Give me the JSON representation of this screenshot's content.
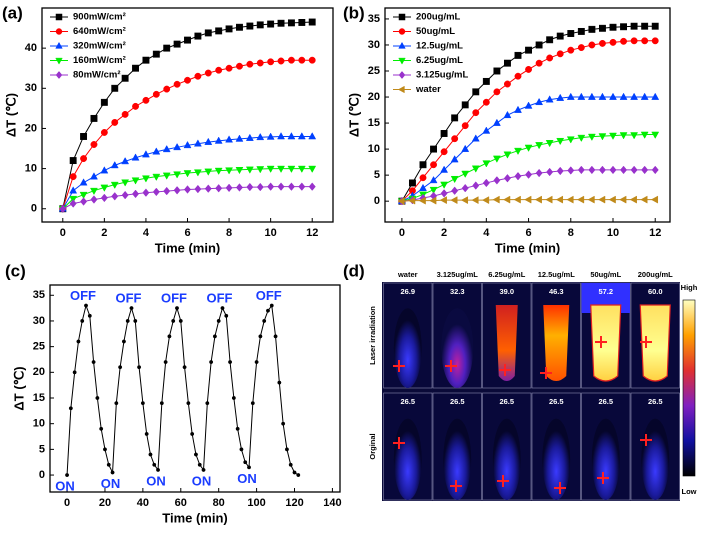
{
  "chart_data": [
    {
      "type": "line",
      "panel_label": "(a)",
      "x_label": "Time (min)",
      "y_label": "ΔT (℃)",
      "x": [
        0,
        0.5,
        1,
        1.5,
        2,
        2.5,
        3,
        3.5,
        4,
        4.5,
        5,
        5.5,
        6,
        6.5,
        7,
        7.5,
        8,
        8.5,
        9,
        9.5,
        10,
        10.5,
        11,
        11.5,
        12
      ],
      "series": [
        {
          "name": "900mW/cm²",
          "color": "#000000",
          "marker": "square",
          "values": [
            0,
            12,
            18,
            22.5,
            26.5,
            30,
            32.5,
            35,
            37,
            38.5,
            40,
            41,
            42,
            43,
            43.8,
            44.3,
            44.8,
            45.2,
            45.5,
            45.8,
            46,
            46.2,
            46.3,
            46.4,
            46.5
          ]
        },
        {
          "name": "640mW/cm²",
          "color": "#ff0000",
          "marker": "circle",
          "values": [
            0,
            8,
            12.5,
            16,
            19,
            21.5,
            23.5,
            25.5,
            27,
            28.5,
            29.8,
            31,
            32,
            33,
            33.8,
            34.5,
            35,
            35.5,
            36,
            36.3,
            36.6,
            36.8,
            37,
            37,
            37
          ]
        },
        {
          "name": "320mW/cm²",
          "color": "#0040ff",
          "marker": "triangle-up",
          "values": [
            0,
            4.5,
            6.5,
            8,
            9.5,
            10.8,
            11.8,
            12.7,
            13.5,
            14.2,
            14.8,
            15.3,
            15.8,
            16.2,
            16.6,
            16.9,
            17.2,
            17.4,
            17.6,
            17.8,
            17.9,
            18,
            18,
            18,
            18
          ]
        },
        {
          "name": "160mW/cm²",
          "color": "#00ee00",
          "marker": "triangle-down",
          "values": [
            0,
            2.5,
            3.5,
            4.5,
            5.3,
            6,
            6.6,
            7.1,
            7.6,
            8,
            8.3,
            8.6,
            8.9,
            9.1,
            9.3,
            9.5,
            9.6,
            9.7,
            9.8,
            9.9,
            10,
            10,
            10,
            10,
            10
          ]
        },
        {
          "name": "80mW/cm²",
          "color": "#9932cc",
          "marker": "diamond",
          "values": [
            0,
            1.3,
            1.8,
            2.3,
            2.7,
            3.1,
            3.4,
            3.7,
            4,
            4.2,
            4.4,
            4.6,
            4.8,
            4.9,
            5,
            5.1,
            5.2,
            5.3,
            5.4,
            5.4,
            5.5,
            5.5,
            5.5,
            5.5,
            5.5
          ]
        }
      ],
      "xlim": [
        -1,
        13
      ],
      "xticks": [
        0,
        2,
        4,
        6,
        8,
        10,
        12
      ],
      "ylim": [
        -3.3,
        50
      ],
      "yticks": [
        0,
        10,
        20,
        30,
        40
      ],
      "legend": "upper left"
    },
    {
      "type": "line",
      "panel_label": "(b)",
      "x_label": "Time (min)",
      "y_label": "ΔT (℃)",
      "x": [
        0,
        0.5,
        1,
        1.5,
        2,
        2.5,
        3,
        3.5,
        4,
        4.5,
        5,
        5.5,
        6,
        6.5,
        7,
        7.5,
        8,
        8.5,
        9,
        9.5,
        10,
        10.5,
        11,
        11.5,
        12
      ],
      "series": [
        {
          "name": "200ug/mL",
          "color": "#000000",
          "marker": "square",
          "values": [
            0,
            3.5,
            7,
            10,
            13,
            16,
            18.5,
            21,
            23,
            25,
            26.5,
            28,
            29,
            30,
            31,
            31.7,
            32.2,
            32.6,
            33,
            33.2,
            33.4,
            33.5,
            33.6,
            33.6,
            33.6
          ]
        },
        {
          "name": "50ug/mL",
          "color": "#ff0000",
          "marker": "circle",
          "values": [
            0,
            2,
            4.5,
            7,
            9.5,
            12,
            14.5,
            17,
            19,
            21,
            22.5,
            24,
            25.3,
            26.5,
            27.5,
            28.3,
            29,
            29.5,
            30,
            30.3,
            30.5,
            30.7,
            30.8,
            30.8,
            30.8
          ]
        },
        {
          "name": "12.5ug/mL",
          "color": "#0040ff",
          "marker": "triangle-up",
          "values": [
            0,
            1,
            2.5,
            4,
            6,
            8,
            10,
            12,
            13.5,
            15,
            16.5,
            17.5,
            18.3,
            19,
            19.5,
            19.8,
            20,
            20,
            20,
            20,
            20,
            20,
            20,
            20,
            20
          ]
        },
        {
          "name": "6.25ug/mL",
          "color": "#00ee00",
          "marker": "triangle-down",
          "values": [
            0,
            0.5,
            1.3,
            2.2,
            3.2,
            4.3,
            5.3,
            6.3,
            7.3,
            8.2,
            9,
            9.7,
            10.3,
            10.8,
            11.2,
            11.6,
            11.9,
            12.2,
            12.4,
            12.5,
            12.6,
            12.7,
            12.7,
            12.8,
            12.8
          ]
        },
        {
          "name": "3.125ug/mL",
          "color": "#9932cc",
          "marker": "diamond",
          "values": [
            0,
            0.2,
            0.6,
            1,
            1.5,
            2,
            2.5,
            3,
            3.5,
            4,
            4.4,
            4.8,
            5.1,
            5.4,
            5.6,
            5.8,
            5.9,
            6,
            6,
            6,
            6,
            6,
            6,
            6,
            6
          ]
        },
        {
          "name": "water",
          "color": "#c08a1a",
          "marker": "triangle-left",
          "values": [
            0,
            0.1,
            0.1,
            0.1,
            0.2,
            0.2,
            0.2,
            0.2,
            0.2,
            0.3,
            0.3,
            0.3,
            0.3,
            0.3,
            0.3,
            0.3,
            0.3,
            0.3,
            0.3,
            0.3,
            0.3,
            0.3,
            0.3,
            0.3,
            0.3
          ]
        }
      ],
      "xlim": [
        -0.8,
        12.7
      ],
      "xticks": [
        0,
        2,
        4,
        6,
        8,
        10,
        12
      ],
      "ylim": [
        -4,
        37.1
      ],
      "yticks": [
        0,
        5,
        10,
        15,
        20,
        25,
        30,
        35
      ],
      "legend": "upper left"
    },
    {
      "type": "line",
      "panel_label": "(c)",
      "x_label": "Time (min)",
      "y_label": "ΔT (℃)",
      "x": [
        0,
        2,
        4,
        6,
        8,
        10,
        12,
        14,
        16,
        18,
        20,
        22,
        24,
        26,
        28,
        30,
        32,
        34,
        36,
        38,
        40,
        42,
        44,
        46,
        48,
        50,
        52,
        54,
        56,
        58,
        60,
        62,
        64,
        66,
        68,
        70,
        72,
        74,
        76,
        78,
        80,
        82,
        84,
        86,
        88,
        90,
        92,
        94,
        96,
        98,
        100,
        102,
        104,
        106,
        108,
        110,
        112,
        114,
        116,
        118,
        120,
        122
      ],
      "series": [
        {
          "name": "ΔT",
          "color": "#000000",
          "marker": "circle",
          "values": [
            0,
            13,
            20,
            26,
            30,
            33,
            31,
            22,
            15,
            9,
            5,
            2,
            0.5,
            14,
            21,
            26,
            30,
            32.5,
            30,
            21,
            14,
            8,
            4,
            2,
            1,
            14,
            22,
            27,
            30,
            32.5,
            30,
            21,
            14,
            8,
            4,
            2,
            1,
            14,
            22,
            27,
            30,
            32.5,
            31,
            22,
            15,
            9,
            5,
            2.5,
            1.5,
            14,
            22,
            27,
            30,
            32,
            33,
            27,
            18,
            10,
            5,
            2,
            0.5,
            0
          ]
        }
      ],
      "annotations": {
        "on": "ON",
        "off": "OFF"
      },
      "annotation_color": "#1a3cff",
      "xlim": [
        -9,
        144
      ],
      "xticks": [
        0,
        20,
        40,
        60,
        80,
        100,
        120,
        140
      ],
      "ylim": [
        -3.3,
        37
      ],
      "yticks": [
        0,
        5,
        10,
        15,
        20,
        25,
        30,
        35
      ]
    }
  ],
  "thermal_panel": {
    "label": "(d)",
    "columns": [
      "water",
      "3.125ug/mL",
      "6.25ug/mL",
      "12.5ug/mL",
      "50ug/mL",
      "200ug/mL"
    ],
    "rows": [
      {
        "name": "Laser irradiation",
        "temperatures": [
          "26.9",
          "32.3",
          "39.0",
          "46.3",
          "57.2",
          "60.0"
        ]
      },
      {
        "name": "Orginal",
        "temperatures": [
          "26.5",
          "26.5",
          "26.5",
          "26.5",
          "26.5",
          "26.5"
        ]
      }
    ],
    "colorbar": {
      "high": "High",
      "low": "Low"
    }
  }
}
